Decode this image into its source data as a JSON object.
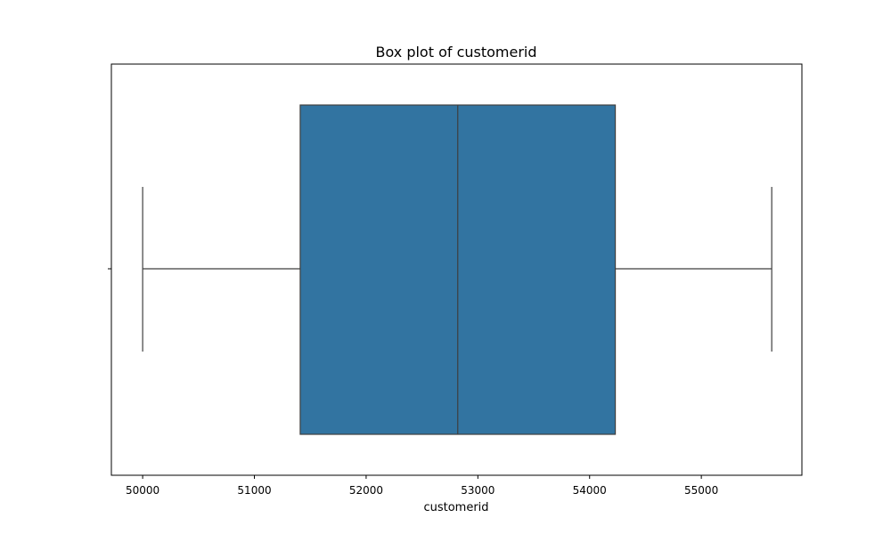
{
  "chart_data": {
    "type": "box",
    "title": "Box plot of customerid",
    "xlabel": "customerid",
    "ylabel": "",
    "orientation": "horizontal",
    "xlim": [
      49720,
      55900
    ],
    "xticks": [
      50000,
      51000,
      52000,
      53000,
      54000,
      55000
    ],
    "xtick_labels": [
      "50000",
      "51000",
      "52000",
      "53000",
      "54000",
      "55000"
    ],
    "grid": false,
    "box": {
      "whisker_low": 50000,
      "q1": 51410,
      "median": 52820,
      "q3": 54230,
      "whisker_high": 55630
    },
    "colors": {
      "box_fill": "#3274a1",
      "line": "#3f3f3f",
      "axes": "#000000"
    }
  }
}
